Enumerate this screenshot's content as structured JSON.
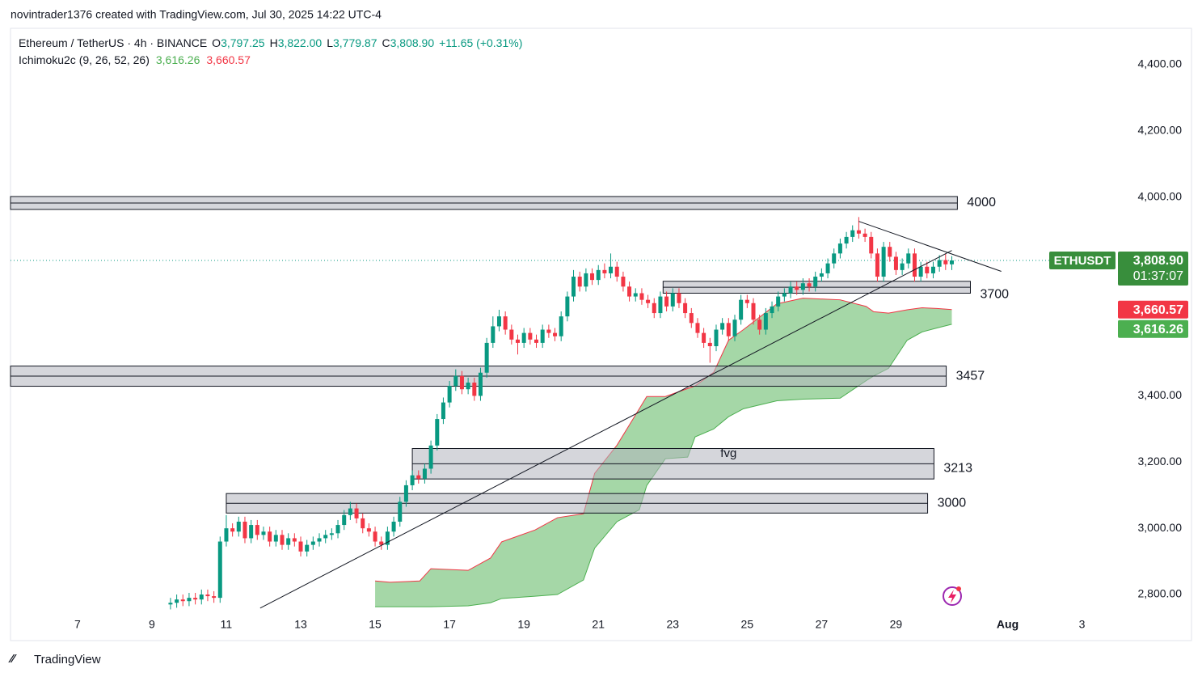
{
  "chart_data": {
    "type": "candlestick",
    "attribution": "novintrader1376 created with TradingView.com, Jul 30, 2025 14:22 UTC-4",
    "brand": "TradingView",
    "legend": {
      "symbol": "Ethereum / TetherUS · 4h · BINANCE",
      "ohlc": [
        [
          "O",
          "3,797.25"
        ],
        [
          "H",
          "3,822.00"
        ],
        [
          "L",
          "3,779.87"
        ],
        [
          "C",
          "3,808.90"
        ]
      ],
      "change": "+11.65 (+0.31%)",
      "indicator": "Ichimoku2c (9, 26, 52, 26)",
      "indicator_values": [
        "3,616.26",
        "3,660.57"
      ]
    },
    "symbol_tag": "ETHUSDT",
    "last_price_label": "3,808.90",
    "countdown": "01:37:07",
    "up_color": "#089981",
    "down_color": "#f23645",
    "xlim": [
      5.2,
      34.9
    ],
    "ylim": [
      2739,
      4510
    ],
    "xticks": [
      7,
      9,
      11,
      13,
      15,
      17,
      19,
      21,
      23,
      25,
      27,
      29,
      {
        "value": 32,
        "label": "Aug"
      },
      {
        "value": 34,
        "label": "3"
      }
    ],
    "yticks": [
      {
        "value": 2800,
        "label": "2,800.00"
      },
      {
        "value": 3000,
        "label": "3,000.00"
      },
      {
        "value": 3200,
        "label": "3,200.00"
      },
      {
        "value": 3400,
        "label": "3,400.00"
      },
      {
        "value": 4000,
        "label": "4,000.00"
      },
      {
        "value": 4200,
        "label": "4,200.00"
      },
      {
        "value": 4400,
        "label": "4,400.00"
      }
    ],
    "grid": false,
    "x": [
      9.5,
      9.667,
      9.833,
      10,
      10.167,
      10.333,
      10.5,
      10.667,
      10.833,
      11,
      11.167,
      11.333,
      11.5,
      11.667,
      11.833,
      12,
      12.167,
      12.333,
      12.5,
      12.667,
      12.833,
      13,
      13.167,
      13.333,
      13.5,
      13.667,
      13.833,
      14,
      14.167,
      14.333,
      14.5,
      14.667,
      14.833,
      15,
      15.167,
      15.333,
      15.5,
      15.667,
      15.833,
      16,
      16.167,
      16.333,
      16.5,
      16.667,
      16.833,
      17,
      17.167,
      17.333,
      17.5,
      17.667,
      17.833,
      18,
      18.167,
      18.333,
      18.5,
      18.667,
      18.833,
      19,
      19.167,
      19.333,
      19.5,
      19.667,
      19.833,
      20,
      20.167,
      20.333,
      20.5,
      20.667,
      20.833,
      21,
      21.167,
      21.333,
      21.5,
      21.667,
      21.833,
      22,
      22.167,
      22.333,
      22.5,
      22.667,
      22.833,
      23,
      23.167,
      23.333,
      23.5,
      23.667,
      23.833,
      24,
      24.167,
      24.333,
      24.5,
      24.667,
      24.833,
      25,
      25.167,
      25.333,
      25.5,
      25.667,
      25.833,
      26,
      26.167,
      26.333,
      26.5,
      26.667,
      26.833,
      27,
      27.167,
      27.333,
      27.5,
      27.667,
      27.833,
      28,
      28.167,
      28.333,
      28.5,
      28.667,
      28.833,
      29,
      29.167,
      29.333,
      29.5,
      29.667,
      29.833,
      30,
      30.167,
      30.333,
      30.5
    ],
    "open": [
      2770,
      2775,
      2785,
      2780,
      2790,
      2785,
      2800,
      2795,
      2790,
      2960,
      3000,
      2990,
      3020,
      2970,
      3010,
      2980,
      2990,
      2960,
      2980,
      2950,
      2970,
      2960,
      2930,
      2950,
      2960,
      2970,
      2980,
      2985,
      3010,
      3040,
      3060,
      3030,
      3000,
      2990,
      2960,
      2950,
      2990,
      3020,
      3080,
      3130,
      3160,
      3150,
      3180,
      3250,
      3330,
      3380,
      3430,
      3460,
      3420,
      3440,
      3400,
      3470,
      3560,
      3610,
      3640,
      3600,
      3570,
      3560,
      3590,
      3570,
      3560,
      3600,
      3590,
      3580,
      3640,
      3700,
      3760,
      3730,
      3770,
      3750,
      3780,
      3770,
      3790,
      3760,
      3730,
      3700,
      3710,
      3690,
      3680,
      3650,
      3700,
      3670,
      3710,
      3680,
      3650,
      3620,
      3590,
      3560,
      3550,
      3600,
      3620,
      3580,
      3630,
      3690,
      3680,
      3630,
      3600,
      3650,
      3670,
      3700,
      3710,
      3730,
      3720,
      3740,
      3730,
      3760,
      3770,
      3800,
      3830,
      3860,
      3880,
      3900,
      3890,
      3880,
      3830,
      3760,
      3850,
      3820,
      3780,
      3800,
      3830,
      3760,
      3790,
      3770,
      3790,
      3810,
      3797.25
    ],
    "high": [
      2790,
      2800,
      2800,
      2805,
      2805,
      2815,
      2815,
      2810,
      2975,
      3040,
      3015,
      3035,
      3035,
      3025,
      3025,
      3005,
      3005,
      2995,
      2995,
      2985,
      2985,
      2975,
      2965,
      2975,
      2985,
      2995,
      3000,
      3025,
      3055,
      3080,
      3075,
      3045,
      3015,
      3005,
      2975,
      3005,
      3035,
      3095,
      3145,
      3175,
      3175,
      3195,
      3265,
      3345,
      3395,
      3445,
      3480,
      3475,
      3455,
      3455,
      3485,
      3575,
      3640,
      3660,
      3655,
      3615,
      3585,
      3605,
      3605,
      3585,
      3615,
      3615,
      3605,
      3655,
      3715,
      3780,
      3775,
      3785,
      3785,
      3795,
      3800,
      3830,
      3805,
      3775,
      3745,
      3725,
      3725,
      3705,
      3695,
      3715,
      3715,
      3725,
      3725,
      3695,
      3665,
      3635,
      3605,
      3575,
      3615,
      3635,
      3635,
      3645,
      3705,
      3705,
      3695,
      3645,
      3665,
      3685,
      3715,
      3725,
      3745,
      3745,
      3755,
      3755,
      3775,
      3785,
      3815,
      3845,
      3875,
      3895,
      3915,
      3940,
      3905,
      3895,
      3845,
      3865,
      3865,
      3835,
      3815,
      3845,
      3845,
      3805,
      3805,
      3805,
      3825,
      3830,
      3822
    ],
    "low": [
      2755,
      2760,
      2765,
      2765,
      2770,
      2770,
      2780,
      2775,
      2775,
      2945,
      2975,
      2975,
      2955,
      2955,
      2965,
      2965,
      2945,
      2945,
      2935,
      2935,
      2945,
      2915,
      2915,
      2935,
      2945,
      2955,
      2965,
      2970,
      2995,
      3025,
      3015,
      2985,
      2975,
      2945,
      2935,
      2935,
      2975,
      3005,
      3065,
      3115,
      3135,
      3135,
      3165,
      3235,
      3315,
      3365,
      3415,
      3405,
      3405,
      3385,
      3385,
      3455,
      3545,
      3595,
      3585,
      3555,
      3525,
      3545,
      3555,
      3545,
      3545,
      3575,
      3565,
      3565,
      3625,
      3685,
      3715,
      3715,
      3735,
      3735,
      3755,
      3755,
      3745,
      3715,
      3685,
      3685,
      3675,
      3665,
      3635,
      3635,
      3655,
      3655,
      3665,
      3635,
      3605,
      3575,
      3545,
      3500,
      3535,
      3585,
      3565,
      3565,
      3615,
      3665,
      3615,
      3585,
      3585,
      3635,
      3655,
      3685,
      3695,
      3705,
      3705,
      3715,
      3715,
      3745,
      3755,
      3785,
      3815,
      3845,
      3865,
      3875,
      3865,
      3815,
      3745,
      3745,
      3805,
      3765,
      3765,
      3785,
      3745,
      3745,
      3755,
      3755,
      3775,
      3780,
      3779.87
    ],
    "close": [
      2775,
      2785,
      2780,
      2790,
      2785,
      2800,
      2795,
      2790,
      2960,
      3000,
      2990,
      3020,
      2970,
      3010,
      2980,
      2990,
      2960,
      2980,
      2950,
      2970,
      2960,
      2930,
      2950,
      2960,
      2970,
      2980,
      2985,
      3010,
      3040,
      3060,
      3030,
      3000,
      2990,
      2960,
      2950,
      2990,
      3020,
      3080,
      3130,
      3160,
      3150,
      3180,
      3250,
      3330,
      3380,
      3430,
      3460,
      3420,
      3440,
      3400,
      3470,
      3560,
      3610,
      3640,
      3600,
      3570,
      3560,
      3590,
      3570,
      3560,
      3600,
      3590,
      3580,
      3640,
      3700,
      3760,
      3730,
      3770,
      3750,
      3780,
      3770,
      3790,
      3760,
      3730,
      3700,
      3710,
      3690,
      3680,
      3650,
      3700,
      3670,
      3710,
      3680,
      3650,
      3620,
      3590,
      3560,
      3550,
      3600,
      3620,
      3580,
      3630,
      3690,
      3680,
      3630,
      3600,
      3650,
      3670,
      3700,
      3710,
      3730,
      3720,
      3740,
      3730,
      3760,
      3770,
      3800,
      3830,
      3860,
      3880,
      3900,
      3890,
      3880,
      3830,
      3760,
      3850,
      3820,
      3780,
      3800,
      3830,
      3760,
      3790,
      3770,
      3790,
      3810,
      3797.25,
      3808.9
    ],
    "cloud": {
      "x": [
        15,
        15.4,
        16.2,
        16.5,
        17.5,
        18.1,
        18.4,
        19.3,
        19.9,
        20.6,
        20.9,
        21.5,
        22.1,
        22.3,
        22.8,
        23.4,
        23.6,
        24.1,
        24.5,
        24.9,
        25.8,
        26.5,
        27.5,
        28.2,
        28.4,
        28.8,
        29.3,
        29.7,
        30.1,
        30.5
      ],
      "span_b": [
        2841,
        2837,
        2841,
        2878,
        2873,
        2910,
        2959,
        2995,
        3032,
        3044,
        3166,
        3251,
        3361,
        3398,
        3398,
        3422,
        3430,
        3471,
        3568,
        3600,
        3678,
        3695,
        3690,
        3670,
        3654,
        3650,
        3660,
        3666,
        3664,
        3660.57
      ],
      "span_a": [
        2763,
        2763,
        2763,
        2763,
        2766,
        2775,
        2788,
        2795,
        2800,
        2844,
        2940,
        3020,
        3056,
        3129,
        3210,
        3215,
        3276,
        3300,
        3337,
        3361,
        3385,
        3390,
        3393,
        3446,
        3460,
        3483,
        3568,
        3593,
        3605,
        3616.26
      ],
      "span_a_color": "#4caf50",
      "span_b_color": "#f23645",
      "fill": "#4caf50"
    },
    "zones": [
      {
        "label": "4000",
        "top": 4002,
        "bottom": 3963,
        "x_start": 5.2,
        "x_end": 30.65
      },
      {
        "label": "3700",
        "top": 3746,
        "bottom": 3710,
        "x_start": 22.74,
        "x_end": 31.0
      },
      {
        "label": "3457",
        "top": 3490,
        "bottom": 3429,
        "x_start": 5.2,
        "x_end": 30.35
      },
      {
        "label": "3213",
        "top": 3241,
        "bottom": 3149,
        "x_start": 16.0,
        "x_end": 30.02
      },
      {
        "label": "3000",
        "top": 3105,
        "bottom": 3046,
        "x_start": 11.0,
        "x_end": 29.85
      }
    ],
    "lines": [
      {
        "x": [
          11.91,
          30.5
        ],
        "y": [
          2759,
          3839
        ]
      },
      {
        "x": [
          28.0,
          31.83
        ],
        "y": [
          3927,
          3776
        ]
      }
    ],
    "annotations": [
      {
        "text": "fvg",
        "x": 24.5,
        "y": 3225
      }
    ]
  }
}
